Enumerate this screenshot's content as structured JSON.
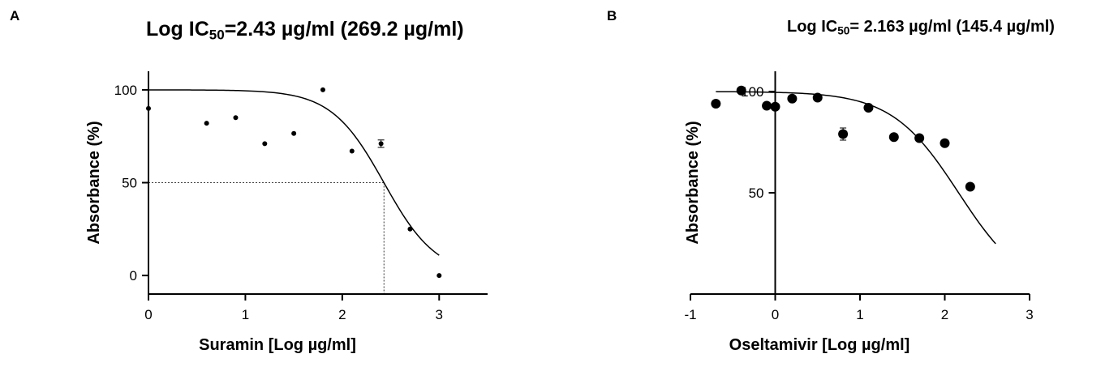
{
  "chart_data": [
    {
      "panel": "A",
      "type": "scatter",
      "title": {
        "prefix": "Log IC",
        "sub": "50",
        "suffix": "=2.43 µg/ml (269.2 µg/ml)"
      },
      "xlabel": "Suramin [Log µg/ml]",
      "ylabel": "Absorbance (%)",
      "xlim": [
        0,
        3.5
      ],
      "ylim": [
        -10,
        110
      ],
      "xticks": [
        0,
        1,
        2,
        3
      ],
      "yticks": [
        0,
        50,
        100
      ],
      "points": [
        {
          "x": 0,
          "y": 90
        },
        {
          "x": 0.6,
          "y": 82
        },
        {
          "x": 0.9,
          "y": 85
        },
        {
          "x": 1.2,
          "y": 71
        },
        {
          "x": 1.5,
          "y": 76.5
        },
        {
          "x": 1.8,
          "y": 100
        },
        {
          "x": 2.1,
          "y": 67
        },
        {
          "x": 2.4,
          "y": 71,
          "err": 2
        },
        {
          "x": 2.7,
          "y": 25
        },
        {
          "x": 3.0,
          "y": 0
        }
      ],
      "fit": {
        "top": 100,
        "bottom": 0,
        "logIC50": 2.43,
        "hill": 1.6,
        "xrange": [
          0,
          3.0
        ]
      },
      "ic50_marker": {
        "x": 2.43,
        "y": 50
      }
    },
    {
      "panel": "B",
      "type": "scatter",
      "title": {
        "prefix": "Log IC",
        "sub": "50",
        "suffix": "= 2.163 µg/ml (145.4 µg/ml)"
      },
      "xlabel": "Oseltamivir [Log µg/ml]",
      "ylabel": "Absorbance (%)",
      "xlim": [
        -1,
        3
      ],
      "ylim": [
        0,
        110
      ],
      "xticks": [
        -1,
        0,
        1,
        2,
        3
      ],
      "yticks": [
        50,
        100
      ],
      "points": [
        {
          "x": -0.7,
          "y": 94
        },
        {
          "x": -0.4,
          "y": 100.5
        },
        {
          "x": -0.1,
          "y": 93
        },
        {
          "x": 0,
          "y": 92.5
        },
        {
          "x": 0.2,
          "y": 96.5
        },
        {
          "x": 0.5,
          "y": 97
        },
        {
          "x": 0.8,
          "y": 79,
          "err": 3
        },
        {
          "x": 1.1,
          "y": 92
        },
        {
          "x": 1.4,
          "y": 77.5
        },
        {
          "x": 1.7,
          "y": 77
        },
        {
          "x": 2.0,
          "y": 74.5
        },
        {
          "x": 2.3,
          "y": 53
        }
      ],
      "fit": {
        "top": 100,
        "bottom": 0,
        "logIC50": 2.163,
        "hill": 1.1,
        "xrange": [
          -0.7,
          2.6
        ]
      }
    }
  ]
}
